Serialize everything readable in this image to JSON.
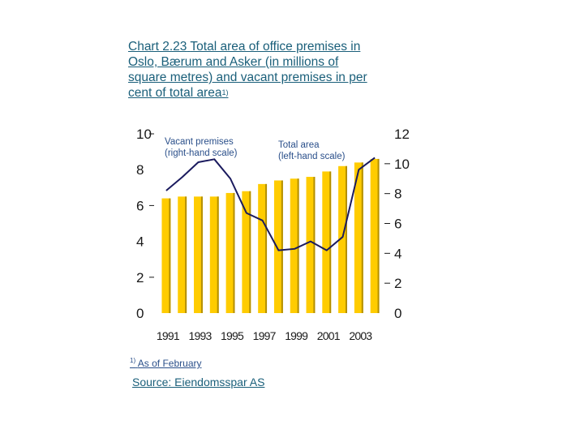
{
  "chart_data": {
    "type": "bar",
    "title": "Total area of office premises in Oslo, Bærum and Asker (in millions of square metres) and vacant premises in per cent of total area",
    "title_prefix": "Chart 2.23",
    "title_footnote_mark": "1)",
    "categories": [
      "1991",
      "1992",
      "1993",
      "1994",
      "1995",
      "1996",
      "1997",
      "1998",
      "1999",
      "2000",
      "2001",
      "2002",
      "2003",
      "2004"
    ],
    "x_tick_labels": [
      "1991",
      "1993",
      "1995",
      "1997",
      "1999",
      "2001",
      "2003"
    ],
    "left_axis": {
      "ylim": [
        0,
        10
      ],
      "ticks": [
        "0",
        "2",
        "4",
        "6",
        "8",
        "10"
      ]
    },
    "right_axis": {
      "ylim": [
        0,
        12
      ],
      "ticks": [
        "0",
        "2",
        "4",
        "6",
        "8",
        "10",
        "12"
      ]
    },
    "series": [
      {
        "name": "Total area (left-hand scale)",
        "kind": "bar",
        "axis": "left",
        "color": "#FFCC00",
        "values": [
          6.4,
          6.5,
          6.5,
          6.5,
          6.7,
          6.8,
          7.2,
          7.4,
          7.5,
          7.6,
          7.9,
          8.2,
          8.4,
          8.6
        ]
      },
      {
        "name": "Vacant premises (right-hand scale)",
        "kind": "line",
        "axis": "right",
        "color": "#1a1a5e",
        "values": [
          8.2,
          9.1,
          10.1,
          10.3,
          9.0,
          6.7,
          6.2,
          4.2,
          4.3,
          4.8,
          4.2,
          5.1,
          9.6,
          10.4
        ]
      }
    ]
  },
  "legend": {
    "vacant": [
      "Vacant premises",
      "(right-hand scale)"
    ],
    "total": [
      "Total area",
      "(left-hand scale)"
    ]
  },
  "footnote": {
    "mark": "1)",
    "text": "As of February"
  },
  "source": "Source: Eiendomsspar AS"
}
